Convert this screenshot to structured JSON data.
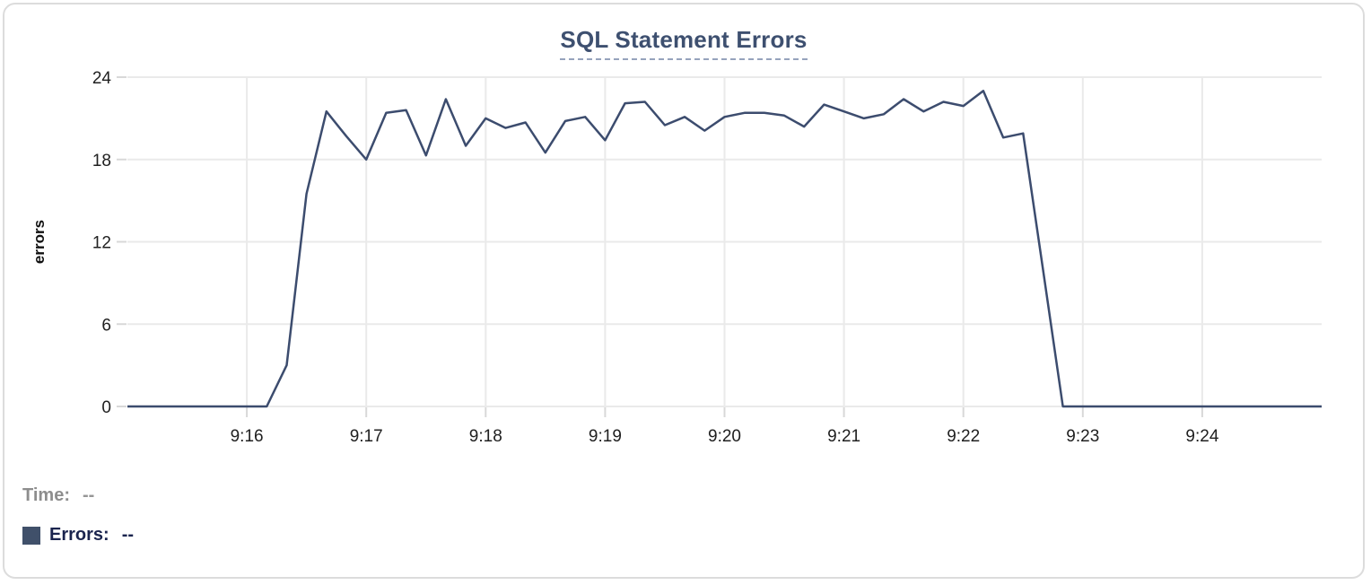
{
  "chart": {
    "title": "SQL Statement Errors",
    "ylabel": "errors"
  },
  "footer": {
    "time_label": "Time:",
    "time_value": "--",
    "errors_label": "Errors:",
    "errors_value": "--"
  },
  "colors": {
    "line": "#3c4c6e",
    "title": "#3e5070",
    "title_underline": "#96a3bc",
    "legend_swatch": "#40506a",
    "errors_text": "#1a244e",
    "time_text": "#8d8d8d",
    "grid": "#eaeaea",
    "tick": "#d8d8d8",
    "axis_text": "#202020",
    "card_border": "#dcdcdc"
  },
  "chart_data": {
    "type": "line",
    "title": "SQL Statement Errors",
    "xlabel": "",
    "ylabel": "errors",
    "x_range": [
      "9:15:00",
      "9:25:00"
    ],
    "ylim": [
      0,
      24
    ],
    "y_ticks": [
      0,
      6,
      12,
      18,
      24
    ],
    "x_ticks": [
      "9:16",
      "9:17",
      "9:18",
      "9:19",
      "9:20",
      "9:21",
      "9:22",
      "9:23",
      "9:24"
    ],
    "grid": true,
    "legend_position": "bottom-left",
    "series": [
      {
        "name": "Errors",
        "x": [
          "9:15:00",
          "9:15:10",
          "9:15:20",
          "9:15:30",
          "9:15:40",
          "9:15:50",
          "9:16:00",
          "9:16:10",
          "9:16:20",
          "9:16:30",
          "9:16:40",
          "9:16:50",
          "9:17:00",
          "9:17:10",
          "9:17:20",
          "9:17:30",
          "9:17:40",
          "9:17:50",
          "9:18:00",
          "9:18:10",
          "9:18:20",
          "9:18:30",
          "9:18:40",
          "9:18:50",
          "9:19:00",
          "9:19:10",
          "9:19:20",
          "9:19:30",
          "9:19:40",
          "9:19:50",
          "9:20:00",
          "9:20:10",
          "9:20:20",
          "9:20:30",
          "9:20:40",
          "9:20:50",
          "9:21:00",
          "9:21:10",
          "9:21:20",
          "9:21:30",
          "9:21:40",
          "9:21:50",
          "9:22:00",
          "9:22:10",
          "9:22:20",
          "9:22:30",
          "9:22:40",
          "9:22:50",
          "9:23:00",
          "9:23:10",
          "9:23:20",
          "9:23:30",
          "9:23:40",
          "9:23:50",
          "9:24:00",
          "9:24:10",
          "9:24:20",
          "9:24:30",
          "9:24:40",
          "9:24:50",
          "9:25:00"
        ],
        "values": [
          0,
          0,
          0,
          0,
          0,
          0,
          0,
          0,
          3,
          15.5,
          21.5,
          19.7,
          18,
          21.4,
          21.6,
          18.3,
          22.4,
          19,
          21,
          20.3,
          20.7,
          18.5,
          20.8,
          21.1,
          19.4,
          22.1,
          22.2,
          20.5,
          21.1,
          20.1,
          21.1,
          21.4,
          21.4,
          21.2,
          20.4,
          22,
          21.5,
          21,
          21.3,
          22.4,
          21.5,
          22.2,
          21.9,
          23,
          19.6,
          19.9,
          10,
          0,
          0,
          0,
          0,
          0,
          0,
          0,
          0,
          0,
          0,
          0,
          0,
          0,
          0
        ]
      }
    ]
  }
}
